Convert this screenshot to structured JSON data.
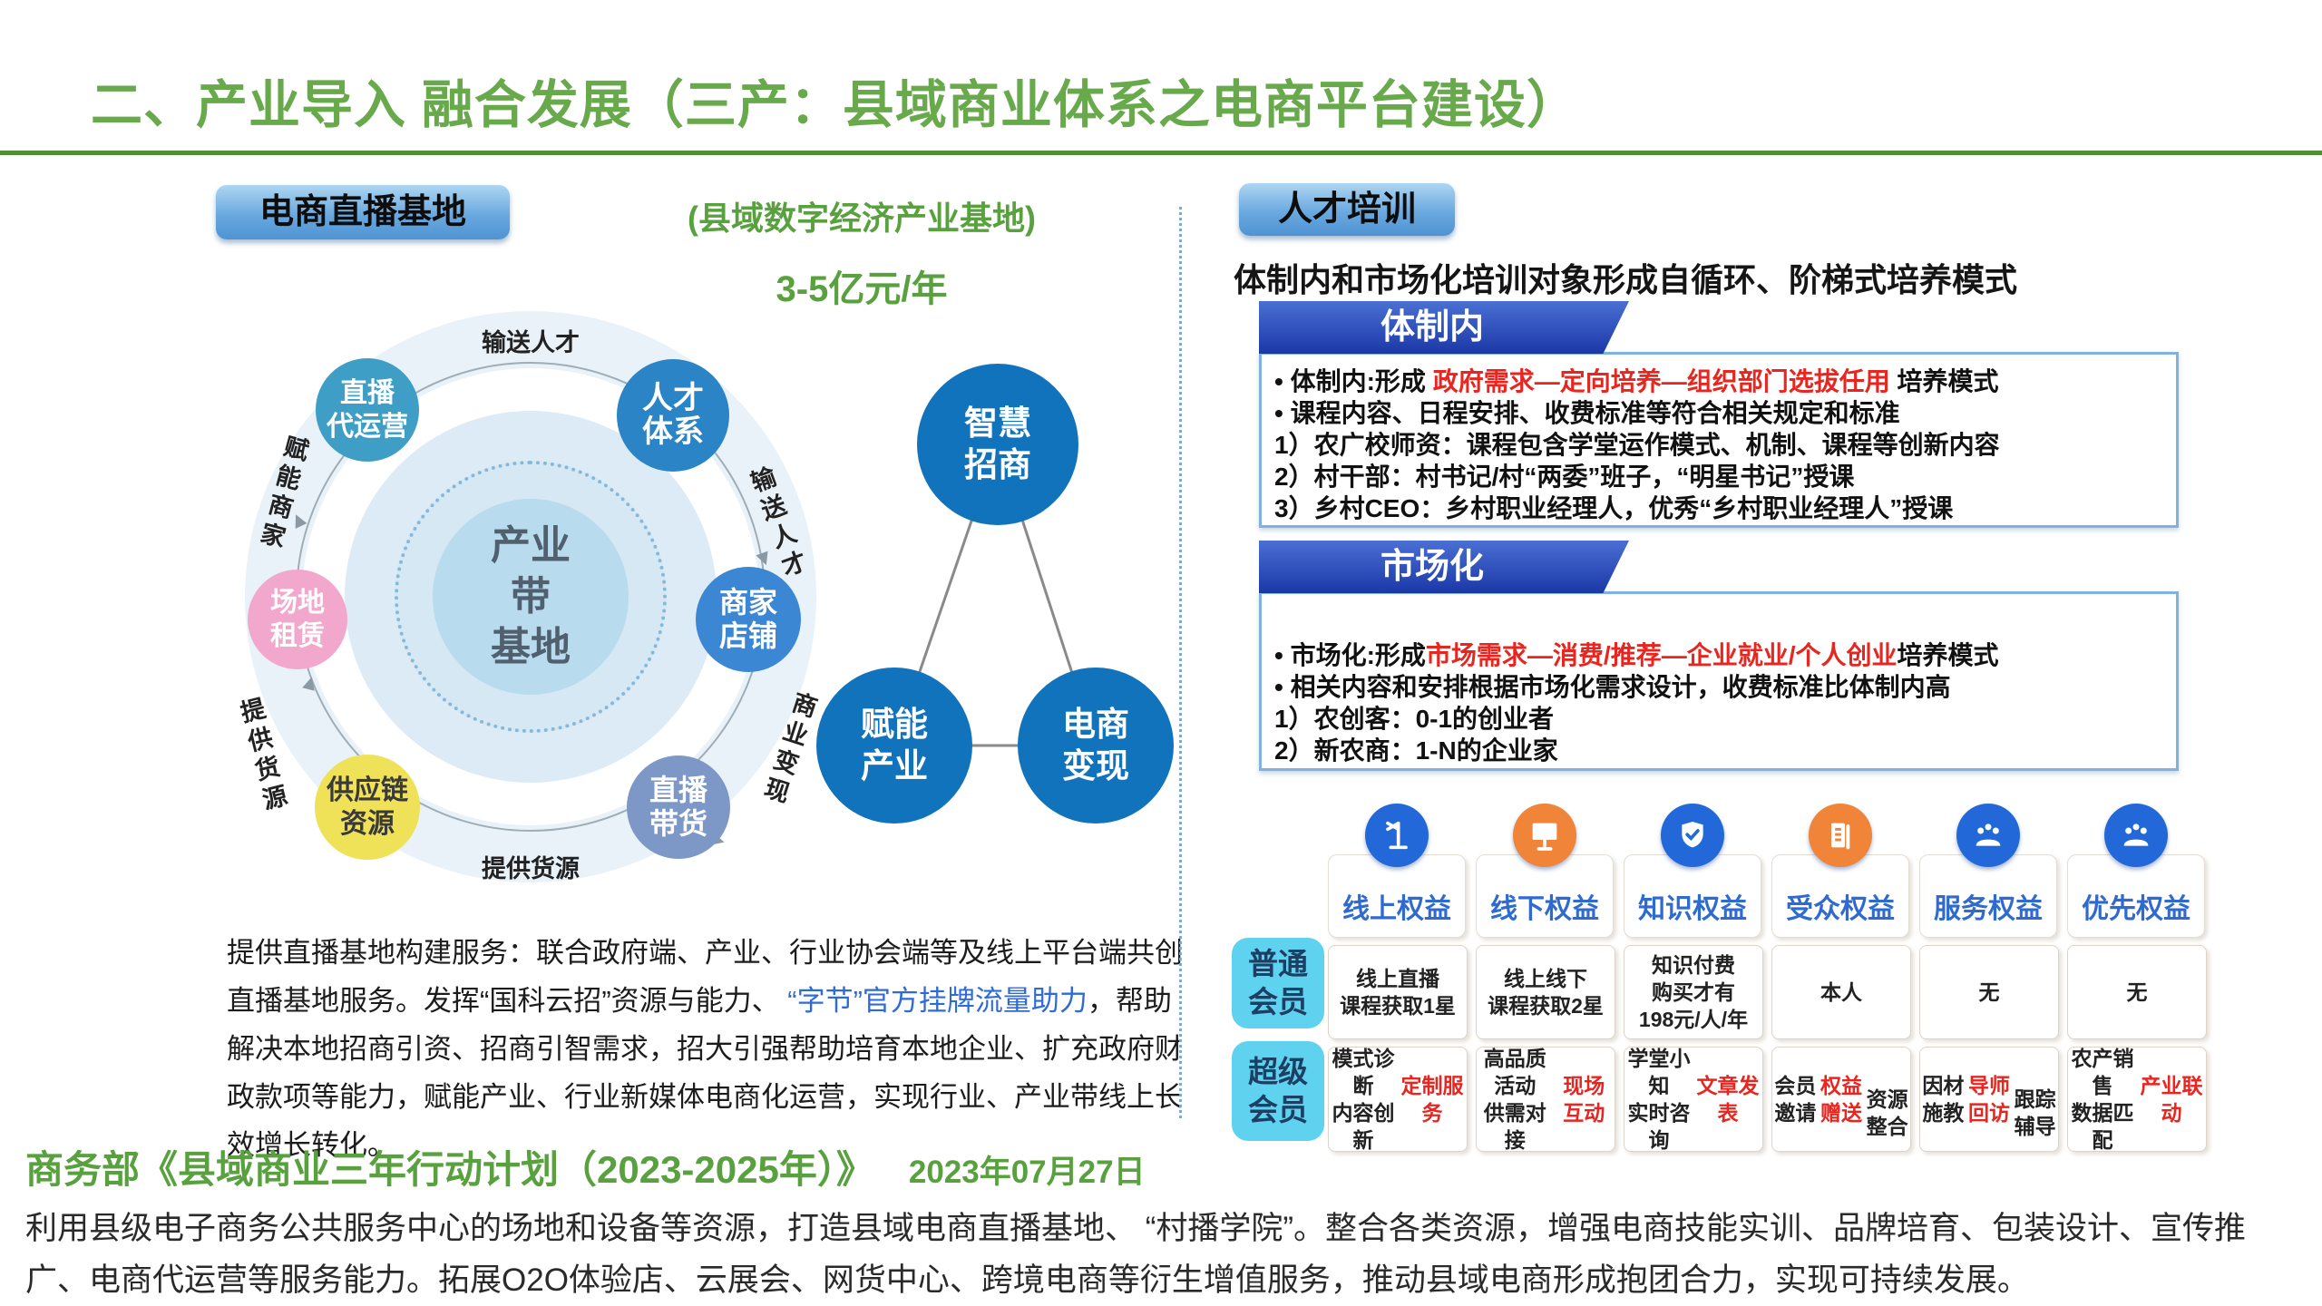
{
  "colors": {
    "accent_green": "#58a13e",
    "banner_blue": "#1b38a6",
    "red": "#e8251f",
    "link_blue": "#2f6bd8",
    "icon_blue": "#2268d8",
    "icon_orange": "#f08438",
    "row_label_cyan": "#5ed2ee"
  },
  "title": "二、产业导入 融合发展（三产：县域商业体系之电商平台建设）",
  "left": {
    "badge": "电商直播基地",
    "subtitle": "(县域数字经济产业基地)",
    "amount": "3-5亿元/年",
    "hub": {
      "center": "产业\n带\n基地",
      "nodes": [
        {
          "label": "直播\n代运营"
        },
        {
          "label": "人才\n体系"
        },
        {
          "label": "商家\n店铺"
        },
        {
          "label": "直播\n带货"
        },
        {
          "label": "供应链\n资源"
        },
        {
          "label": "场地\n租赁"
        }
      ],
      "ring_labels": {
        "top": "输送人才",
        "right_top": "输送人才",
        "right_bottom": "商业变现",
        "bottom": "提供货源",
        "left_bottom": "提供货源",
        "left_top": "赋能商家"
      }
    },
    "triangle": {
      "top": "智慧\n招商",
      "bottom_left": "赋能\n产业",
      "bottom_right": "电商\n变现"
    },
    "description_segments": [
      {
        "t": "提供直播基地构建服务：联合政府端、产业、行业协会端等及线上平台端共创直播基地服务。发挥“国科云招”资源与能力、 "
      },
      {
        "t": "“字节”官方挂牌流量助力",
        "c": "blue"
      },
      {
        "t": "，帮助解决本地招商引资、招商引智需求，招大引强帮助培育本地企业、扩充政府财政款项等能力，赋能产业、行业新媒体电商化运营，实现行业、产业带线上长效增长转化。"
      }
    ]
  },
  "right": {
    "badge": "人才培训",
    "subtitle": "体制内和市场化培训对象形成自循环、阶梯式培养模式",
    "tizhinei": {
      "header": "体制内",
      "lines": [
        [
          {
            "t": "•    体制内:形成 "
          },
          {
            "t": "政府需求—定向培养—组织部门选拔任用",
            "c": "red"
          },
          {
            "t": " 培养模式"
          }
        ],
        [
          {
            "t": "•    课程内容、日程安排、收费标准等符合相关规定和标准"
          }
        ],
        [
          {
            "t": "1）农广校师资：课程包含学堂运作模式、机制、课程等创新内容"
          }
        ],
        [
          {
            "t": "2）村干部：村书记/村“两委”班子，“明星书记”授课"
          }
        ],
        [
          {
            "t": "3）乡村CEO：乡村职业经理人，优秀“乡村职业经理人”授课"
          }
        ]
      ]
    },
    "shichanghua": {
      "header": "市场化",
      "lines": [
        [
          {
            "t": "•    市场化:形成"
          },
          {
            "t": "市场需求—消费/推荐—企业就业/个人创业",
            "c": "red"
          },
          {
            "t": "培养模式"
          }
        ],
        [
          {
            "t": "•    相关内容和安排根据市场化需求设计，收费标准比体制内高"
          }
        ],
        [
          {
            "t": "1）农创客：0-1的创业者"
          }
        ],
        [
          {
            "t": "2）新农商：1-N的企业家"
          }
        ]
      ]
    },
    "benefits_table": {
      "columns": [
        {
          "label": "线上权益",
          "icon": "mic-stand-icon",
          "icon_color": "#2268d8"
        },
        {
          "label": "线下权益",
          "icon": "presentation-screen-icon",
          "icon_color": "#f08438"
        },
        {
          "label": "知识权益",
          "icon": "shield-check-icon",
          "icon_color": "#2268d8"
        },
        {
          "label": "受众权益",
          "icon": "ledger-icon",
          "icon_color": "#f08438"
        },
        {
          "label": "服务权益",
          "icon": "audience-group-icon",
          "icon_color": "#2268d8"
        },
        {
          "label": "优先权益",
          "icon": "audience-group-icon",
          "icon_color": "#2268d8"
        }
      ],
      "rows": [
        {
          "label": "普通\n会员",
          "cells": [
            "线上直播\n课程获取1星",
            "线上线下\n课程获取2星",
            "知识付费\n购买才有\n198元/人/年",
            "本人",
            "无",
            "无"
          ]
        },
        {
          "label": "超级\n会员",
          "cells_segments": [
            [
              {
                "t": "模式诊断\n内容创新\n"
              },
              {
                "t": "定制服务",
                "c": "red"
              }
            ],
            [
              {
                "t": "高品质活动\n供需对接\n"
              },
              {
                "t": "现场互动",
                "c": "red"
              }
            ],
            [
              {
                "t": "学堂小知\n实时咨询\n"
              },
              {
                "t": "文章发表",
                "c": "red"
              }
            ],
            [
              {
                "t": "会员邀请\n"
              },
              {
                "t": "权益赠送",
                "c": "red"
              },
              {
                "t": "\n资源整合"
              }
            ],
            [
              {
                "t": "因材施教\n"
              },
              {
                "t": "导师回访",
                "c": "red"
              },
              {
                "t": "\n跟踪辅导"
              }
            ],
            [
              {
                "t": "农产销售\n数据匹配\n"
              },
              {
                "t": "产业联动",
                "c": "red"
              }
            ]
          ]
        }
      ]
    }
  },
  "footer": {
    "policy_title": "商务部《县域商业三年行动计划（2023-2025年）》",
    "policy_date": "2023年07月27日",
    "paragraph": "利用县级电子商务公共服务中心的场地和设备等资源，打造县域电商直播基地、 “村播学院”。整合各类资源，增强电商技能实训、品牌培育、包装设计、宣传推广、电商代运营等服务能力。拓展O2O体验店、云展会、网货中心、跨境电商等衍生增值服务，推动县域电商形成抱团合力，实现可持续发展。"
  }
}
